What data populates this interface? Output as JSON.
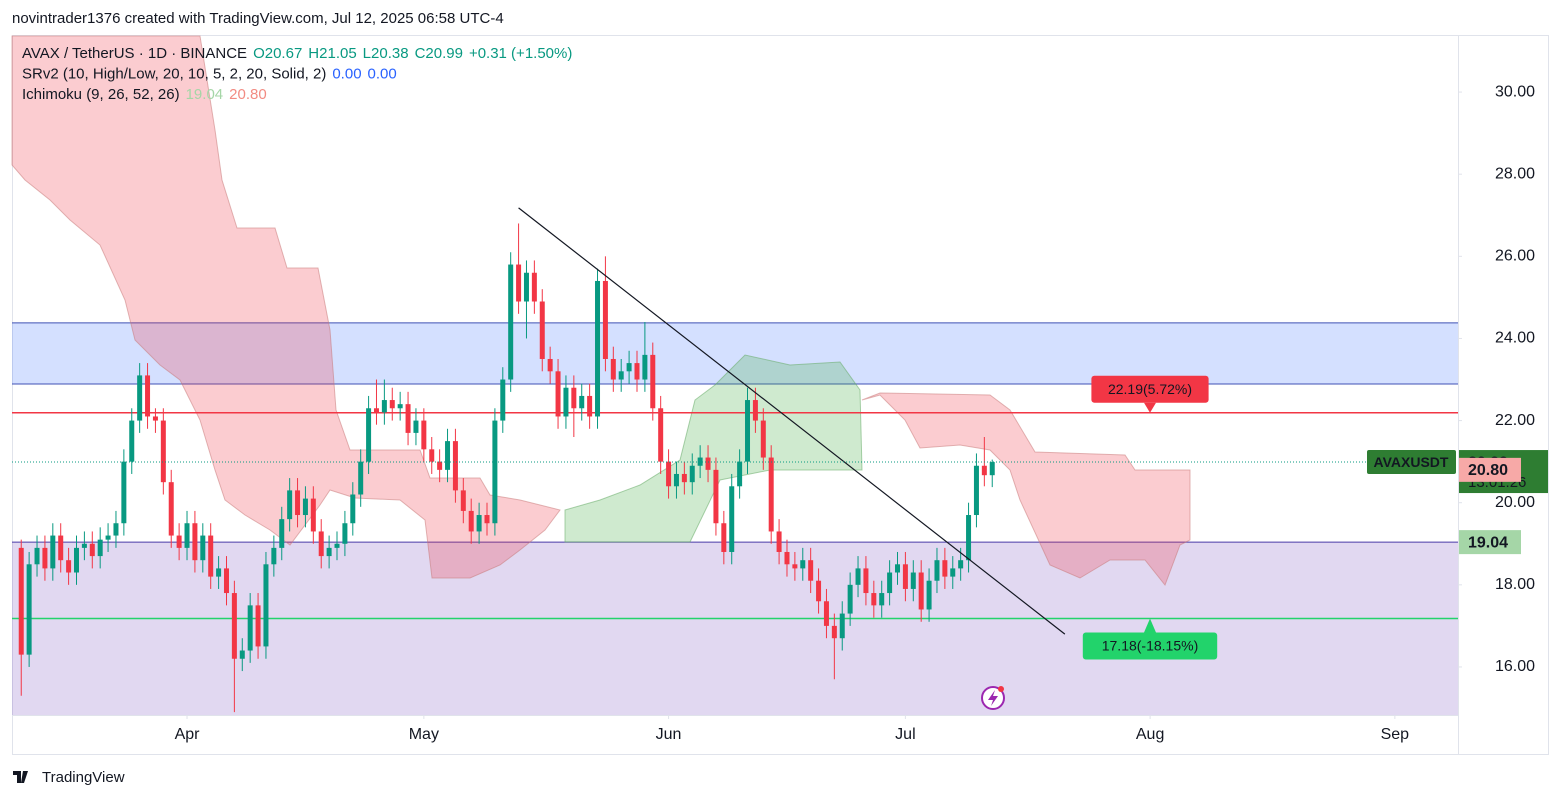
{
  "header": {
    "attribution": "novintrader1376 created with TradingView.com, Jul 12, 2025 06:58 UTC-4",
    "footer": "TradingView"
  },
  "chart_data": {
    "type": "candlestick",
    "legend": [
      [
        {
          "text": "AVAX / TetherUS · 1D · BINANCE",
          "color": "#131722"
        },
        {
          "text": "O20.67",
          "color": "#089981"
        },
        {
          "text": "H21.05",
          "color": "#089981"
        },
        {
          "text": "L20.38",
          "color": "#089981"
        },
        {
          "text": "C20.99",
          "color": "#089981"
        },
        {
          "text": "+0.31 (+1.50%)",
          "color": "#089981"
        }
      ],
      [
        {
          "text": "SRv2 (10, High/Low, 20, 10, 5, 2, 20, Solid, 2)",
          "color": "#131722"
        },
        {
          "text": "0.00",
          "color": "#2962ff"
        },
        {
          "text": "0.00",
          "color": "#2962ff"
        }
      ],
      [
        {
          "text": "Ichimoku (9, 26, 52, 26)",
          "color": "#131722"
        },
        {
          "text": "19.04",
          "color": "#a5d6a7"
        },
        {
          "text": "20.80",
          "color": "#f28b82"
        }
      ]
    ],
    "up_color": "#089981",
    "down_color": "#f23645",
    "ohlc": [
      [
        18.9,
        19.1,
        15.3,
        16.3
      ],
      [
        16.3,
        18.8,
        16.0,
        18.5
      ],
      [
        18.5,
        19.2,
        18.2,
        18.9
      ],
      [
        18.9,
        19.2,
        18.1,
        18.4
      ],
      [
        18.4,
        19.5,
        18.1,
        19.2
      ],
      [
        19.2,
        19.5,
        18.3,
        18.6
      ],
      [
        18.6,
        18.9,
        18.0,
        18.3
      ],
      [
        18.3,
        19.2,
        18.0,
        18.9
      ],
      [
        18.9,
        19.3,
        18.6,
        19.0
      ],
      [
        19.0,
        19.3,
        18.4,
        18.7
      ],
      [
        18.7,
        19.4,
        18.4,
        19.1
      ],
      [
        19.1,
        19.5,
        18.8,
        19.2
      ],
      [
        19.2,
        19.8,
        18.9,
        19.5
      ],
      [
        19.5,
        21.3,
        19.2,
        21.0
      ],
      [
        21.0,
        22.3,
        20.7,
        22.0
      ],
      [
        22.0,
        23.4,
        21.7,
        23.1
      ],
      [
        23.1,
        23.4,
        21.8,
        22.1
      ],
      [
        22.1,
        22.3,
        21.7,
        22.0
      ],
      [
        22.0,
        22.3,
        20.2,
        20.5
      ],
      [
        20.5,
        20.8,
        18.9,
        19.2
      ],
      [
        19.2,
        19.5,
        18.6,
        18.9
      ],
      [
        18.9,
        19.8,
        18.6,
        19.5
      ],
      [
        19.5,
        19.8,
        18.3,
        18.6
      ],
      [
        18.6,
        19.5,
        18.3,
        19.2
      ],
      [
        19.2,
        19.5,
        17.9,
        18.2
      ],
      [
        18.2,
        18.7,
        17.9,
        18.4
      ],
      [
        18.4,
        18.7,
        17.5,
        17.8
      ],
      [
        17.8,
        18.1,
        14.9,
        16.2
      ],
      [
        16.2,
        16.7,
        15.9,
        16.4
      ],
      [
        16.4,
        17.8,
        16.1,
        17.5
      ],
      [
        17.5,
        17.8,
        16.2,
        16.5
      ],
      [
        16.5,
        18.8,
        16.2,
        18.5
      ],
      [
        18.5,
        19.2,
        18.2,
        18.9
      ],
      [
        18.9,
        19.9,
        18.6,
        19.6
      ],
      [
        19.6,
        20.6,
        19.3,
        20.3
      ],
      [
        20.3,
        20.6,
        19.4,
        19.7
      ],
      [
        19.7,
        20.4,
        19.4,
        20.1
      ],
      [
        20.1,
        20.4,
        19.0,
        19.3
      ],
      [
        19.3,
        19.6,
        18.4,
        18.7
      ],
      [
        18.7,
        19.2,
        18.4,
        18.9
      ],
      [
        18.9,
        19.3,
        18.6,
        19.0
      ],
      [
        19.0,
        19.8,
        18.7,
        19.5
      ],
      [
        19.5,
        20.5,
        19.2,
        20.2
      ],
      [
        20.2,
        21.3,
        19.9,
        21.0
      ],
      [
        21.0,
        22.6,
        20.7,
        22.3
      ],
      [
        22.3,
        23.0,
        21.9,
        22.2
      ],
      [
        22.2,
        23.0,
        21.9,
        22.5
      ],
      [
        22.5,
        22.8,
        22.0,
        22.3
      ],
      [
        22.3,
        22.7,
        22.0,
        22.4
      ],
      [
        22.4,
        22.7,
        21.4,
        21.7
      ],
      [
        21.7,
        22.3,
        21.4,
        22.0
      ],
      [
        22.0,
        22.3,
        21.0,
        21.3
      ],
      [
        21.3,
        21.6,
        20.7,
        21.0
      ],
      [
        21.0,
        21.3,
        20.5,
        20.8
      ],
      [
        20.8,
        21.8,
        20.5,
        21.5
      ],
      [
        21.5,
        21.8,
        20.0,
        20.3
      ],
      [
        20.3,
        20.6,
        19.5,
        19.8
      ],
      [
        19.8,
        20.1,
        19.0,
        19.3
      ],
      [
        19.3,
        20.0,
        19.0,
        19.7
      ],
      [
        19.7,
        20.0,
        19.2,
        19.5
      ],
      [
        19.5,
        22.3,
        19.2,
        22.0
      ],
      [
        22.0,
        23.3,
        21.7,
        23.0
      ],
      [
        23.0,
        26.1,
        22.7,
        25.8
      ],
      [
        25.8,
        26.8,
        24.6,
        24.9
      ],
      [
        24.9,
        25.9,
        24.0,
        25.6
      ],
      [
        25.6,
        25.9,
        24.6,
        24.9
      ],
      [
        24.9,
        25.2,
        23.2,
        23.5
      ],
      [
        23.5,
        23.8,
        22.9,
        23.2
      ],
      [
        23.2,
        23.5,
        21.8,
        22.1
      ],
      [
        22.1,
        23.1,
        21.8,
        22.8
      ],
      [
        22.8,
        23.1,
        21.6,
        22.3
      ],
      [
        22.3,
        22.9,
        22.0,
        22.6
      ],
      [
        22.6,
        22.9,
        21.8,
        22.1
      ],
      [
        22.1,
        25.7,
        21.8,
        25.4
      ],
      [
        25.4,
        26.0,
        23.2,
        23.5
      ],
      [
        23.5,
        23.8,
        22.7,
        23.0
      ],
      [
        23.0,
        23.5,
        22.7,
        23.2
      ],
      [
        23.2,
        23.7,
        22.9,
        23.4
      ],
      [
        23.4,
        23.7,
        22.7,
        23.0
      ],
      [
        23.0,
        24.4,
        22.7,
        23.6
      ],
      [
        23.6,
        23.9,
        22.0,
        22.3
      ],
      [
        22.3,
        22.6,
        20.7,
        21.0
      ],
      [
        21.0,
        21.3,
        20.1,
        20.4
      ],
      [
        20.4,
        21.0,
        20.1,
        20.7
      ],
      [
        20.7,
        21.0,
        20.2,
        20.5
      ],
      [
        20.5,
        21.2,
        20.2,
        20.9
      ],
      [
        20.9,
        21.4,
        20.6,
        21.1
      ],
      [
        21.1,
        21.4,
        20.5,
        20.8
      ],
      [
        20.8,
        21.1,
        19.2,
        19.5
      ],
      [
        19.5,
        19.8,
        18.5,
        18.8
      ],
      [
        18.8,
        20.7,
        18.5,
        20.4
      ],
      [
        20.4,
        21.3,
        20.1,
        21.0
      ],
      [
        21.0,
        22.8,
        20.7,
        22.5
      ],
      [
        22.5,
        22.8,
        21.7,
        22.0
      ],
      [
        22.0,
        22.3,
        20.8,
        21.1
      ],
      [
        21.1,
        21.4,
        19.0,
        19.3
      ],
      [
        19.3,
        19.6,
        18.5,
        18.8
      ],
      [
        18.8,
        19.1,
        18.2,
        18.5
      ],
      [
        18.5,
        18.8,
        18.1,
        18.4
      ],
      [
        18.4,
        18.9,
        18.1,
        18.6
      ],
      [
        18.6,
        18.9,
        17.8,
        18.1
      ],
      [
        18.1,
        18.4,
        17.3,
        17.6
      ],
      [
        17.6,
        17.9,
        16.7,
        17.0
      ],
      [
        17.0,
        17.3,
        15.7,
        16.7
      ],
      [
        16.7,
        17.6,
        16.4,
        17.3
      ],
      [
        17.3,
        18.3,
        17.0,
        18.0
      ],
      [
        18.0,
        18.7,
        17.7,
        18.4
      ],
      [
        18.4,
        18.7,
        17.5,
        17.8
      ],
      [
        17.8,
        18.1,
        17.2,
        17.5
      ],
      [
        17.5,
        18.1,
        17.2,
        17.8
      ],
      [
        17.8,
        18.6,
        17.5,
        18.3
      ],
      [
        18.3,
        18.8,
        18.0,
        18.5
      ],
      [
        18.5,
        18.8,
        17.6,
        17.9
      ],
      [
        17.9,
        18.6,
        17.6,
        18.3
      ],
      [
        18.3,
        18.6,
        17.1,
        17.4
      ],
      [
        17.4,
        18.4,
        17.1,
        18.1
      ],
      [
        18.1,
        18.9,
        17.8,
        18.6
      ],
      [
        18.6,
        18.9,
        17.9,
        18.2
      ],
      [
        18.2,
        18.7,
        17.9,
        18.4
      ],
      [
        18.4,
        18.9,
        18.1,
        18.6
      ],
      [
        18.6,
        20.0,
        18.3,
        19.7
      ],
      [
        19.7,
        21.2,
        19.4,
        20.9
      ],
      [
        20.9,
        21.6,
        20.4,
        20.67
      ],
      [
        20.67,
        21.05,
        20.38,
        20.99
      ]
    ],
    "xlim": [
      -1.17,
      182
    ],
    "xticks": [
      {
        "value": 21,
        "label": "Apr"
      },
      {
        "value": 51,
        "label": "May"
      },
      {
        "value": 82,
        "label": "Jun"
      },
      {
        "value": 112,
        "label": "Jul"
      },
      {
        "value": 143,
        "label": "Aug"
      },
      {
        "value": 174,
        "label": "Sep"
      }
    ],
    "ylim": [
      14.83,
      31.39
    ],
    "yticks": [
      {
        "value": 16,
        "label": "16.00"
      },
      {
        "value": 18,
        "label": "18.00"
      },
      {
        "value": 20,
        "label": "20.00"
      },
      {
        "value": 22,
        "label": "22.00"
      },
      {
        "value": 24,
        "label": "24.00"
      },
      {
        "value": 26,
        "label": "26.00"
      },
      {
        "value": 28,
        "label": "28.00"
      },
      {
        "value": 30,
        "label": "30.00"
      }
    ],
    "zones": [
      {
        "low": 22.89,
        "high": 24.38,
        "color": "rgba(41,98,255,0.2)",
        "edge": "#3f51b5"
      },
      {
        "high": 19.04,
        "color": "rgba(103,58,183,0.2)",
        "edge": "#4a3aa8"
      }
    ],
    "targets": [
      {
        "value": 22.19,
        "label": "22.19(5.72%)",
        "color": "#f23645",
        "side": "above"
      },
      {
        "value": 17.18,
        "label": "17.18(-18.15%)",
        "color": "#22d36b",
        "side": "below"
      }
    ],
    "trendline": {
      "x": [
        63,
        132.2
      ],
      "y": [
        27.18,
        16.8
      ]
    },
    "price_labels": [
      {
        "value": 20.99,
        "name": "AVAXUSDT",
        "label": "20.99",
        "countdown": "13:01:26",
        "color": "#2e7d32",
        "text_color": "#ffffff"
      },
      {
        "value": 20.8,
        "label": "20.80",
        "color": "#f7a9a7",
        "text_color": "#131722"
      },
      {
        "value": 19.04,
        "label": "19.04",
        "color": "#a5d6a7",
        "text_color": "#131722"
      }
    ]
  }
}
